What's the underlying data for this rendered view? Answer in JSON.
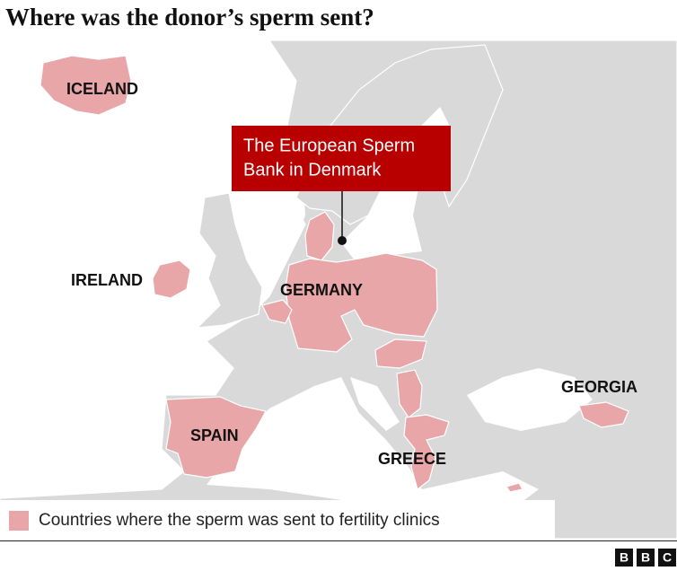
{
  "title": "Where was the donor’s sperm sent?",
  "callout": [
    "The European Sperm",
    "Bank in Denmark"
  ],
  "labels": [
    "ICELAND",
    "IRELAND",
    "GERMANY",
    "SPAIN",
    "GREECE",
    "GEORGIA"
  ],
  "legend": "Countries where the sperm was sent to fertility clinics",
  "logo": [
    "B",
    "B",
    "C"
  ]
}
